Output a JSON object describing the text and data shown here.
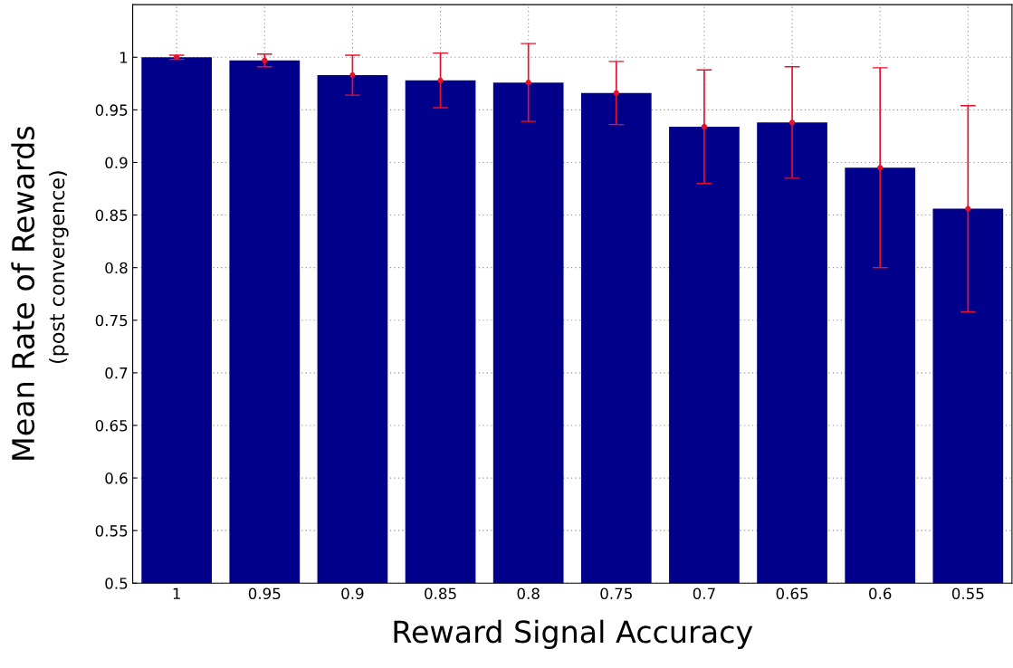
{
  "chart_data": {
    "type": "bar",
    "xlabel": "Reward Signal Accuracy",
    "ylabel": "Mean Rate of Rewards",
    "annotations": [
      "(post convergence)"
    ],
    "categories": [
      "1",
      "0.95",
      "0.9",
      "0.85",
      "0.8",
      "0.75",
      "0.7",
      "0.65",
      "0.6",
      "0.55"
    ],
    "series": [
      {
        "color": "#00008b",
        "values": [
          1.0,
          0.997,
          0.983,
          0.978,
          0.976,
          0.966,
          0.934,
          0.938,
          0.895,
          0.856
        ]
      },
      {
        "type": "scatter",
        "color": "#e8102a",
        "x": [
          "1",
          "0.95",
          "0.9",
          "0.85",
          "0.8",
          "0.75",
          "0.7",
          "0.65",
          "0.6",
          "0.55"
        ],
        "values": [
          1.0,
          0.997,
          0.983,
          0.978,
          0.976,
          0.966,
          0.934,
          0.938,
          0.895,
          0.856
        ],
        "errors": [
          0.002,
          0.006,
          0.019,
          0.026,
          0.037,
          0.03,
          0.054,
          0.053,
          0.095,
          0.098
        ]
      }
    ],
    "marker": "circle",
    "ylim": [
      0.5,
      1.05
    ],
    "yticks": [
      0.5,
      0.55,
      0.6,
      0.65,
      0.7,
      0.75,
      0.8,
      0.85,
      0.9,
      0.95,
      1
    ],
    "grid": true
  }
}
